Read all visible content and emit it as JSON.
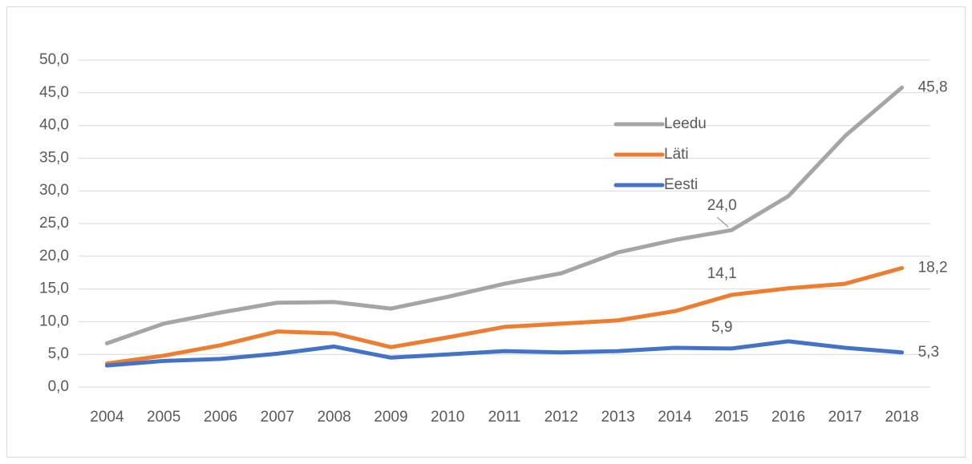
{
  "chart_data": {
    "type": "line",
    "categories": [
      "2004",
      "2005",
      "2006",
      "2007",
      "2008",
      "2009",
      "2010",
      "2011",
      "2012",
      "2013",
      "2014",
      "2015",
      "2016",
      "2017",
      "2018"
    ],
    "series": [
      {
        "name": "Leedu",
        "color": "#a5a5a5",
        "values": [
          6.7,
          9.7,
          11.4,
          12.9,
          13.0,
          12.0,
          13.8,
          15.8,
          17.4,
          20.6,
          22.5,
          24.0,
          29.2,
          38.4,
          45.8
        ],
        "value_labels": [
          null,
          null,
          null,
          null,
          null,
          null,
          null,
          null,
          null,
          null,
          null,
          "24,0",
          null,
          null,
          "45,8"
        ]
      },
      {
        "name": "Läti",
        "color": "#ed7d31",
        "values": [
          3.6,
          4.8,
          6.4,
          8.5,
          8.2,
          6.1,
          7.6,
          9.2,
          9.7,
          10.2,
          11.6,
          14.1,
          15.1,
          15.8,
          18.2
        ],
        "value_labels": [
          null,
          null,
          null,
          null,
          null,
          null,
          null,
          null,
          null,
          null,
          null,
          "14,1",
          null,
          null,
          "18,2"
        ]
      },
      {
        "name": "Eesti",
        "color": "#4472c4",
        "values": [
          3.3,
          4.0,
          4.3,
          5.1,
          6.2,
          4.5,
          5.0,
          5.5,
          5.3,
          5.5,
          6.0,
          5.9,
          7.0,
          6.0,
          5.3
        ],
        "value_labels": [
          null,
          null,
          null,
          null,
          null,
          null,
          null,
          null,
          null,
          null,
          null,
          "5,9",
          null,
          null,
          "5,3"
        ]
      }
    ],
    "ylim": [
      0,
      50
    ],
    "yticks": [
      {
        "value": 0,
        "label": "0,0"
      },
      {
        "value": 5,
        "label": "5,0"
      },
      {
        "value": 10,
        "label": "10,0"
      },
      {
        "value": 15,
        "label": "15,0"
      },
      {
        "value": 20,
        "label": "20,0"
      },
      {
        "value": 25,
        "label": "25,0"
      },
      {
        "value": 30,
        "label": "30,0"
      },
      {
        "value": 35,
        "label": "35,0"
      },
      {
        "value": 40,
        "label": "40,0"
      },
      {
        "value": 45,
        "label": "45,0"
      },
      {
        "value": 50,
        "label": "50,0"
      }
    ],
    "grid": true
  }
}
